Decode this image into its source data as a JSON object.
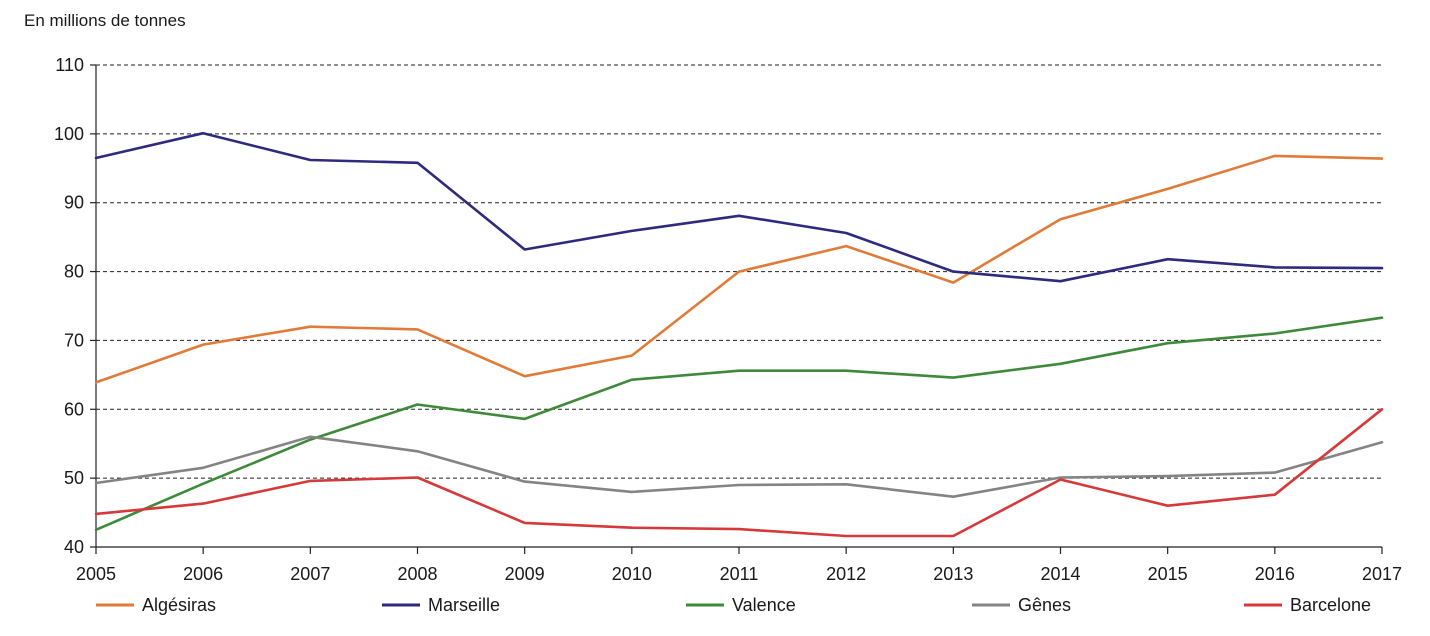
{
  "chart_data": {
    "type": "line",
    "ylabel": "En millions de tonnes",
    "ylim": [
      40,
      110
    ],
    "yticks": [
      40,
      50,
      60,
      70,
      80,
      90,
      100,
      110
    ],
    "x": [
      2005,
      2006,
      2007,
      2008,
      2009,
      2010,
      2011,
      2012,
      2013,
      2014,
      2015,
      2016,
      2017
    ],
    "grid": true,
    "legend_position": "bottom",
    "series": [
      {
        "name": "Algésiras",
        "color": "#e07b39",
        "values": [
          63.9,
          69.4,
          72.0,
          71.6,
          64.8,
          67.8,
          80.0,
          83.7,
          78.4,
          87.6,
          92.0,
          96.8,
          96.4
        ]
      },
      {
        "name": "Marseille",
        "color": "#2e2a7e",
        "values": [
          96.5,
          100.1,
          96.2,
          95.8,
          83.2,
          85.9,
          88.1,
          85.6,
          80.0,
          78.6,
          81.8,
          80.6,
          80.5
        ]
      },
      {
        "name": "Valence",
        "color": "#3f8a3a",
        "values": [
          42.5,
          49.2,
          55.6,
          60.7,
          58.6,
          64.3,
          65.6,
          65.6,
          64.6,
          66.6,
          69.6,
          71.0,
          73.3
        ]
      },
      {
        "name": "Gênes",
        "color": "#848484",
        "values": [
          49.3,
          51.5,
          56.0,
          53.9,
          49.5,
          48.0,
          49.0,
          49.1,
          47.3,
          50.1,
          50.3,
          50.8,
          55.2
        ]
      },
      {
        "name": "Barcelone",
        "color": "#d6393a",
        "values": [
          44.8,
          46.3,
          49.6,
          50.1,
          43.5,
          42.8,
          42.6,
          41.6,
          41.6,
          49.8,
          46.0,
          47.6,
          60.0
        ]
      }
    ]
  }
}
